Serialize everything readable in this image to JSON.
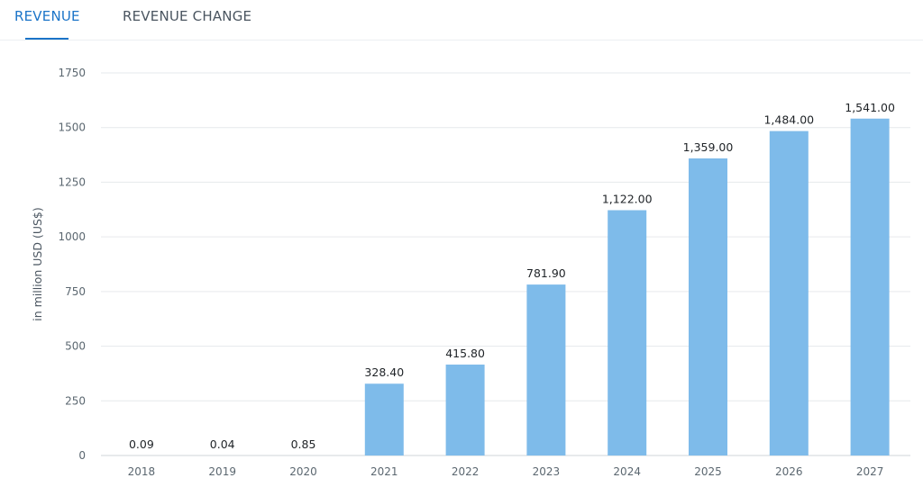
{
  "tabs": [
    {
      "label": "REVENUE",
      "active": true
    },
    {
      "label": "REVENUE CHANGE",
      "active": false
    }
  ],
  "colors": {
    "bar": "#7ebbea",
    "tab_active": "#1b74c8",
    "tab_inactive": "#4a5560",
    "grid": "#e6e9ec"
  },
  "chart_data": {
    "type": "bar",
    "title": "",
    "xlabel": "",
    "ylabel": "in million USD (US$)",
    "categories": [
      "2018",
      "2019",
      "2020",
      "2021",
      "2022",
      "2023",
      "2024",
      "2025",
      "2026",
      "2027"
    ],
    "values": [
      0.09,
      0.04,
      0.85,
      328.4,
      415.8,
      781.9,
      1122,
      1359,
      1484,
      1541
    ],
    "data_labels": [
      "0.09",
      "0.04",
      "0.85",
      "328.40",
      "415.80",
      "781.90",
      "1,122.00",
      "1,359.00",
      "1,484.00",
      "1,541.00"
    ],
    "ylim": [
      0,
      1750
    ],
    "yticks": [
      0,
      250,
      500,
      750,
      1000,
      1250,
      1500,
      1750
    ],
    "grid": true,
    "legend": "none"
  }
}
